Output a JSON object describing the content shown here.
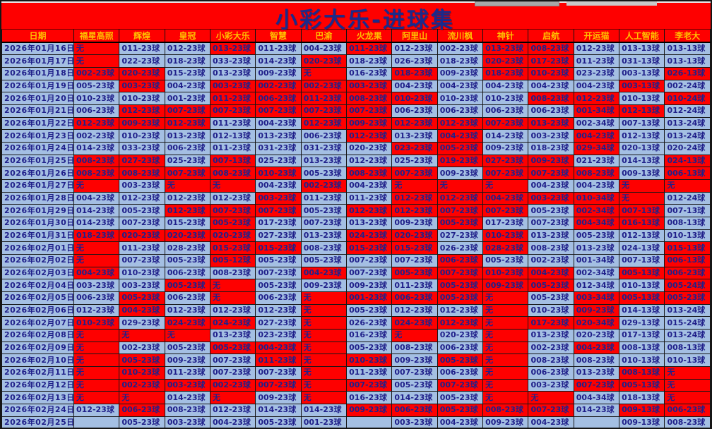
{
  "page": {
    "title": "小彩大乐-进球集"
  },
  "colors": {
    "red_cell": "#fe0000",
    "blue_cell": "#a4bfe3",
    "cell_text": "#20208a",
    "header_text": "#ffc000",
    "title_text": "#1a2a8c",
    "background": "#fe0000"
  },
  "table": {
    "columns": [
      "日期",
      "福星高照",
      "辉煌",
      "皇冠",
      "小彩大乐",
      "智慧",
      "巴渝",
      "火龙果",
      "阿里山",
      "流川枫",
      "神针",
      "启航",
      "开运猫",
      "人工智能",
      "李老大"
    ],
    "rows": [
      {
        "date": "2026年01月16日",
        "cells": [
          "无|r",
          "011-23球|b",
          "012-23球|b",
          "013-23球|r",
          "011-23球|b",
          "004-23球|b",
          "011-23球|r",
          "012-23球|b",
          "002-23球|b",
          "013-23球|r",
          "008-23球|r",
          "012-23球|b",
          "013-13球|b",
          "013-13球|b"
        ]
      },
      {
        "date": "2026年01月17日",
        "cells": [
          "无|r",
          "022-23球|b",
          "018-23球|b",
          "033-23球|b",
          "014-23球|b",
          "020-23球|r",
          "018-23球|b",
          "026-23球|b",
          "018-23球|b",
          "020-23球|r",
          "017-23球|r",
          "011-23球|b",
          "031-13球|b",
          "013-13球|b"
        ]
      },
      {
        "date": "2026年01月18日",
        "cells": [
          "002-23球|r",
          "020-23球|r",
          "015-23球|b",
          "013-23球|b",
          "009-23球|b",
          "无|r",
          "016-23球|b",
          "018-23球|r",
          "009-23球|b",
          "018-23球|r",
          "010-23球|r",
          "023-23球|b",
          "003-13球|b",
          "026-13球|r"
        ]
      },
      {
        "date": "2026年01月19日",
        "cells": [
          "005-23球|b",
          "003-23球|r",
          "004-23球|b",
          "003-23球|r",
          "002-23球|r",
          "002-23球|r",
          "003-23球|r",
          "004-23球|b",
          "004-23球|b",
          "004-23球|b",
          "004-23球|b",
          "004-23球|b",
          "003-13球|r",
          "002-24球|b"
        ]
      },
      {
        "date": "2026年01月20日",
        "cells": [
          "010-23球|b",
          "010-23球|b",
          "001-23球|b",
          "011-23球|r",
          "006-23球|r",
          "011-23球|r",
          "008-23球|r",
          "010-23球|r",
          "010-23球|b",
          "010-23球|b",
          "008-23球|r",
          "012-23球|r",
          "010-13球|b",
          "010-24球|r"
        ]
      },
      {
        "date": "2026年01月21日",
        "cells": [
          "006-23球|b",
          "012-23球|r",
          "007-23球|r",
          "007-23球|r",
          "007-23球|r",
          "007-23球|r",
          "007-23球|r",
          "006-23球|b",
          "006-23球|b",
          "006-23球|b",
          "006-23球|b",
          "001-34球|r",
          "012-13球|r",
          "012-24球|b"
        ]
      },
      {
        "date": "2026年01月22日",
        "cells": [
          "012-23球|r",
          "009-23球|r",
          "012-23球|r",
          "011-23球|b",
          "004-23球|b",
          "012-23球|r",
          "009-23球|r",
          "012-23球|r",
          "012-23球|r",
          "007-23球|r",
          "013-23球|r",
          "002-34球|b",
          "007-13球|b",
          "013-24球|b"
        ]
      },
      {
        "date": "2026年01月23日",
        "cells": [
          "002-23球|b",
          "010-23球|b",
          "013-23球|b",
          "012-13球|b",
          "013-23球|b",
          "006-23球|b",
          "012-23球|r",
          "013-23球|b",
          "004-23球|r",
          "014-23球|b",
          "003-23球|b",
          "004-23球|r",
          "012-13球|b",
          "013-24球|b"
        ]
      },
      {
        "date": "2026年01月24日",
        "cells": [
          "014-23球|b",
          "033-23球|b",
          "006-23球|b",
          "011-23球|b",
          "031-23球|b",
          "031-23球|b",
          "020-23球|b",
          "023-23球|r",
          "005-23球|r",
          "009-23球|b",
          "018-23球|b",
          "029-34球|r",
          "020-13球|b",
          "020-24球|b"
        ]
      },
      {
        "date": "2026年01月25日",
        "cells": [
          "008-23球|r",
          "027-23球|r",
          "025-23球|b",
          "007-13球|r",
          "025-23球|b",
          "013-23球|b",
          "012-23球|b",
          "025-23球|b",
          "019-23球|r",
          "027-23球|r",
          "009-23球|r",
          "021-23球|b",
          "014-13球|b",
          "024-13球|r"
        ]
      },
      {
        "date": "2026年01月26日",
        "cells": [
          "008-23球|r",
          "008-23球|r",
          "007-23球|r",
          "008-23球|r",
          "010-23球|r",
          "005-23球|b",
          "008-23球|r",
          "007-23球|r",
          "009-23球|b",
          "007-23球|r",
          "007-23球|r",
          "008-23球|r",
          "009-13球|b",
          "006-13球|r"
        ]
      },
      {
        "date": "2026年01月27日",
        "cells": [
          "无|r",
          "003-23球|b",
          "无|r",
          "无|r",
          "004-23球|b",
          "002-23球|r",
          "004-23球|b",
          "无|r",
          "无|r",
          "无|r",
          "004-23球|b",
          "004-23球|b",
          "无|r",
          "无|r"
        ]
      },
      {
        "date": "2026年01月28日",
        "cells": [
          "004-23球|b",
          "012-23球|b",
          "012-23球|b",
          "012-23球|b",
          "003-23球|r",
          "011-23球|b",
          "011-23球|b",
          "012-23球|r",
          "012-23球|r",
          "004-23球|r",
          "003-23球|r",
          "010-34球|r",
          "无|r",
          "012-24球|b"
        ]
      },
      {
        "date": "2026年01月29日",
        "cells": [
          "014-23球|b",
          "005-23球|b",
          "012-23球|r",
          "007-23球|r",
          "007-23球|r",
          "005-23球|b",
          "012-23球|r",
          "012-23球|r",
          "007-23球|r",
          "007-23球|r",
          "005-23球|b",
          "002-34球|r",
          "007-13球|r",
          "007-13球|b"
        ]
      },
      {
        "date": "2026年01月30日",
        "cells": [
          "014-23球|b",
          "007-23球|b",
          "015-23球|b",
          "005-23球|r",
          "017-23球|b",
          "007-23球|b",
          "013-23球|b",
          "009-23球|b",
          "005-23球|r",
          "017-23球|b",
          "007-23球|b",
          "004-34球|r",
          "016-13球|r",
          "008-13球|b"
        ]
      },
      {
        "date": "2026年01月31日",
        "cells": [
          "018-23球|r",
          "020-23球|r",
          "020-23球|r",
          "020-23球|r",
          "027-23球|b",
          "013-23球|b",
          "024-23球|r",
          "020-23球|r",
          "027-23球|b",
          "010-23球|r",
          "013-23球|b",
          "005-23球|b",
          "012-13球|b",
          "010-13球|b"
        ]
      },
      {
        "date": "2026年02月01日",
        "cells": [
          "无|r",
          "011-23球|b",
          "028-23球|b",
          "015-23球|r",
          "015-23球|r",
          "008-23球|b",
          "015-23球|r",
          "015-23球|r",
          "026-23球|b",
          "028-23球|r",
          "008-23球|b",
          "013-23球|b",
          "024-13球|b",
          "015-13球|r"
        ]
      },
      {
        "date": "2026年02月02日",
        "cells": [
          "无|r",
          "007-23球|b",
          "005-23球|b",
          "005-12球|r",
          "005-23球|b",
          "005-23球|b",
          "007-23球|b",
          "007-23球|b",
          "006-23球|r",
          "005-23球|b",
          "002-23球|b",
          "001-34球|b",
          "007-13球|b",
          "006-13球|r"
        ]
      },
      {
        "date": "2026年02月03日",
        "cells": [
          "004-23球|r",
          "010-23球|b",
          "006-23球|b",
          "008-23球|b",
          "007-23球|b",
          "004-23球|r",
          "007-23球|b",
          "005-23球|r",
          "007-23球|r",
          "010-23球|r",
          "004-23球|r",
          "002-34球|b",
          "005-13球|r",
          "006-23球|r"
        ]
      },
      {
        "date": "2026年02月04日",
        "cells": [
          "003-23球|b",
          "003-23球|b",
          "005-23球|r",
          "无|r",
          "005-23球|b",
          "009-23球|b",
          "009-23球|b",
          "011-23球|b",
          "005-23球|r",
          "009-23球|r",
          "005-23球|r",
          "012-34球|b",
          "010-13球|b",
          "005-24球|r"
        ]
      },
      {
        "date": "2026年02月05日",
        "cells": [
          "006-23球|b",
          "005-23球|r",
          "006-23球|b",
          "无|r",
          "006-23球|b",
          "无|r",
          "001-23球|r",
          "006-23球|r",
          "005-23球|r",
          "无|r",
          "005-23球|b",
          "003-34球|r",
          "005-13球|r",
          "005-23球|r"
        ]
      },
      {
        "date": "2026年02月06日",
        "cells": [
          "012-23球|b",
          "004-23球|r",
          "012-23球|b",
          "012-23球|b",
          "012-23球|b",
          "无|r",
          "005-23球|b",
          "012-23球|b",
          "012-23球|b",
          "无|r",
          "010-23球|b",
          "009-23球|r",
          "014-13球|b",
          "013-24球|b"
        ]
      },
      {
        "date": "2026年02月07日",
        "cells": [
          "010-23球|r",
          "029-23球|b",
          "024-23球|r",
          "024-23球|r",
          "027-23球|b",
          "无|r",
          "026-23球|b",
          "024-23球|r",
          "012-23球|r",
          "无|r",
          "017-23球|r",
          "020-34球|r",
          "029-13球|b",
          "015-24球|b"
        ]
      },
      {
        "date": "2026年02月08日",
        "cells": [
          "无|r",
          "无|r",
          "无|r",
          "013-23球|b",
          "023-23球|b",
          "无|r",
          "016-23球|b",
          "无|r",
          "020-23球|b",
          "无|r",
          "013-23球|b",
          "020-23球|b",
          "017-13球|b",
          "013-24球|b"
        ]
      },
      {
        "date": "2026年02月09日",
        "cells": [
          "无|r",
          "002-23球|b",
          "005-23球|b",
          "005-23球|r",
          "004-23球|r",
          "无|r",
          "005-23球|b",
          "008-23球|b",
          "006-23球|b",
          "无|r",
          "002-23球|b",
          "004-23球|r",
          "008-13球|b",
          "008-13球|b"
        ]
      },
      {
        "date": "2026年02月10日",
        "cells": [
          "无|r",
          "005-23球|r",
          "009-23球|b",
          "007-23球|b",
          "011-23球|r",
          "无|r",
          "010-23球|r",
          "009-23球|b",
          "005-23球|r",
          "无|r",
          "008-23球|b",
          "008-23球|b",
          "010-13球|b",
          "010-13球|b"
        ]
      },
      {
        "date": "2026年02月11日",
        "cells": [
          "无|r",
          "010-23球|r",
          "011-23球|b",
          "007-23球|b",
          "007-23球|b",
          "无|r",
          "011-23球|b",
          "007-23球|b",
          "006-23球|b",
          "无|r",
          "006-23球|b",
          "013-23球|b",
          "008-13球|r",
          "无|r"
        ]
      },
      {
        "date": "2026年02月12日",
        "cells": [
          "无|r",
          "002-23球|r",
          "003-23球|r",
          "002-23球|r",
          "007-23球|r",
          "无|r",
          "007-23球|r",
          "005-23球|b",
          "007-23球|r",
          "无|r",
          "003-23球|b",
          "007-23球|r",
          "005-13球|r",
          "无|r"
        ]
      },
      {
        "date": "2026年02月13日",
        "cells": [
          "无|r",
          "无|r",
          "014-23球|b",
          "无|r",
          "009-23球|b",
          "无|r",
          "016-23球|b",
          "014-23球|b",
          "005-23球|b",
          "无|r",
          "无|r",
          "004-34球|b",
          "018-13球|b",
          "无|r"
        ]
      },
      {
        "date": "2026年02月24日",
        "cells": [
          "012-23球|b",
          "006-23球|r",
          "008-23球|b",
          "012-23球|b",
          "014-23球|b",
          "014-23球|b",
          "009-23球|r",
          "006-23球|r",
          "005-23球|r",
          "008-23球|r",
          "007-23球|r",
          "014-23球|b",
          "009-13球|r",
          "006-23球|r"
        ]
      },
      {
        "date": "2026年02月25日",
        "cells": [
          "|b",
          "005-23球|b",
          "003-23球|b",
          "004-23球|b",
          "005-23球|b",
          "001-23球|b",
          "|b",
          "003-23球|b",
          "004-23球|b",
          "009-23球|b",
          "004-23球|b",
          "|b",
          "009-13球|b",
          "008-23球|b"
        ]
      }
    ]
  }
}
